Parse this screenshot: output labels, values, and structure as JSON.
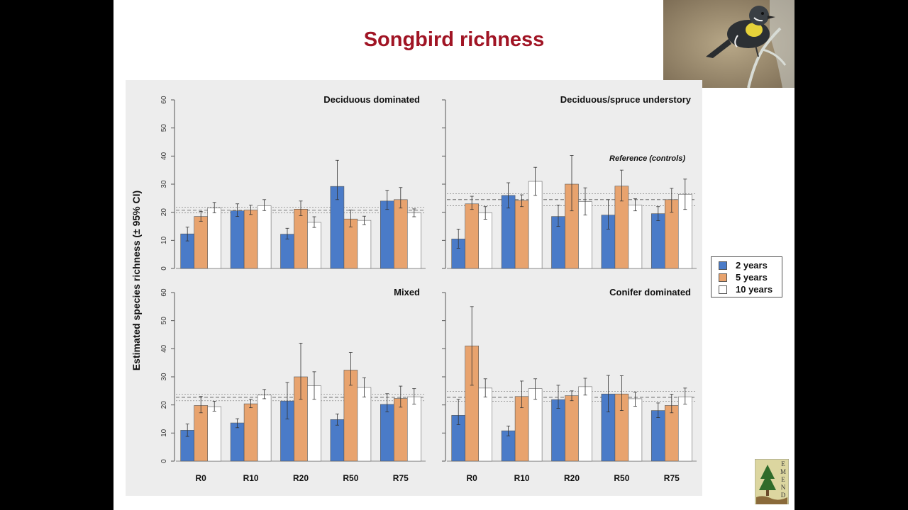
{
  "slide": {
    "title": "Songbird richness"
  },
  "legend": [
    {
      "label": "2 years",
      "color": "#4a7bc8"
    },
    {
      "label": "5 years",
      "color": "#e8a36e"
    },
    {
      "label": "10 years",
      "color": "#ffffff"
    }
  ],
  "logo": {
    "text": "EMEND"
  },
  "chart_data": {
    "type": "bar",
    "ylabel": "Estimated species richness (± 95% CI)",
    "ylim": [
      0,
      60
    ],
    "yticks": [
      0,
      10,
      20,
      30,
      40,
      50,
      60
    ],
    "categories": [
      "R0",
      "R10",
      "R20",
      "R50",
      "R75"
    ],
    "series_names": [
      "2 years",
      "5 years",
      "10 years"
    ],
    "series_colors": [
      "#4a7bc8",
      "#e8a36e",
      "#ffffff"
    ],
    "reference_label": "Reference (controls)",
    "panels": [
      {
        "title": "Deciduous dominated",
        "values": [
          [
            12.3,
            18.5,
            21.5
          ],
          [
            20.5,
            20.8,
            22.3
          ],
          [
            12.2,
            21.1,
            16.4
          ],
          [
            29.2,
            17.6,
            17.1
          ],
          [
            24.0,
            24.5,
            19.8
          ]
        ],
        "ci_low": [
          [
            9.8,
            16.8,
            19.8
          ],
          [
            18.5,
            19.2,
            20.6
          ],
          [
            10.5,
            18.8,
            14.6
          ],
          [
            24.5,
            14.8,
            15.6
          ],
          [
            21.0,
            21.5,
            18.4
          ]
        ],
        "ci_high": [
          [
            14.7,
            20.3,
            23.5
          ],
          [
            23.0,
            22.5,
            24.5
          ],
          [
            14.3,
            24.0,
            18.4
          ],
          [
            38.5,
            20.8,
            18.6
          ],
          [
            27.8,
            28.8,
            21.2
          ]
        ],
        "ref": [
          20.7,
          19.8,
          21.8
        ]
      },
      {
        "title": "Deciduous/spruce understory",
        "values": [
          [
            10.5,
            23.0,
            19.8
          ],
          [
            26.0,
            24.2,
            31.0
          ],
          [
            18.5,
            30.0,
            23.8
          ],
          [
            19.0,
            29.3,
            22.6
          ],
          [
            19.5,
            24.5,
            26.4
          ]
        ],
        "ci_low": [
          [
            7.2,
            21.0,
            17.5
          ],
          [
            21.5,
            22.0,
            26.0
          ],
          [
            15.0,
            20.5,
            19.0
          ],
          [
            14.0,
            24.0,
            20.5
          ],
          [
            17.0,
            20.0,
            21.0
          ]
        ],
        "ci_high": [
          [
            14.0,
            25.7,
            22.0
          ],
          [
            30.5,
            26.2,
            36.0
          ],
          [
            22.5,
            40.2,
            28.7
          ],
          [
            24.5,
            35.0,
            24.8
          ],
          [
            22.0,
            28.5,
            31.8
          ]
        ],
        "ref": [
          24.5,
          22.3,
          26.6
        ]
      },
      {
        "title": "Mixed",
        "values": [
          [
            11.0,
            19.8,
            19.4
          ],
          [
            13.6,
            20.4,
            23.5
          ],
          [
            21.4,
            30.0,
            26.8
          ],
          [
            14.8,
            32.4,
            26.2
          ],
          [
            20.2,
            22.3,
            22.9
          ]
        ],
        "ci_low": [
          [
            8.8,
            17.2,
            17.8
          ],
          [
            11.9,
            19.0,
            22.2
          ],
          [
            15.0,
            22.0,
            22.0
          ],
          [
            12.8,
            27.0,
            22.8
          ],
          [
            17.5,
            19.2,
            20.3
          ]
        ],
        "ci_high": [
          [
            13.2,
            23.0,
            21.3
          ],
          [
            15.1,
            22.0,
            25.5
          ],
          [
            28.0,
            42.0,
            31.8
          ],
          [
            16.8,
            38.7,
            29.7
          ],
          [
            24.0,
            26.7,
            25.8
          ]
        ],
        "ref": [
          22.7,
          21.5,
          23.8
        ]
      },
      {
        "title": "Conifer dominated",
        "values": [
          [
            16.3,
            41.0,
            26.0
          ],
          [
            10.8,
            23.0,
            25.8
          ],
          [
            21.9,
            23.3,
            26.5
          ],
          [
            23.9,
            23.9,
            22.2
          ],
          [
            18.0,
            19.8,
            22.9
          ]
        ],
        "ci_low": [
          [
            13.0,
            27.0,
            22.8
          ],
          [
            9.0,
            19.0,
            22.0
          ],
          [
            18.8,
            21.5,
            23.5
          ],
          [
            17.5,
            18.0,
            19.5
          ],
          [
            15.5,
            17.2,
            20.3
          ]
        ],
        "ci_high": [
          [
            22.0,
            55.0,
            29.3
          ],
          [
            12.5,
            28.5,
            29.3
          ],
          [
            27.0,
            25.0,
            29.5
          ],
          [
            30.5,
            30.4,
            24.5
          ],
          [
            20.7,
            23.8,
            26.0
          ]
        ],
        "ref": [
          22.7,
          21.3,
          24.8
        ]
      }
    ],
    "legend_position": "right"
  }
}
